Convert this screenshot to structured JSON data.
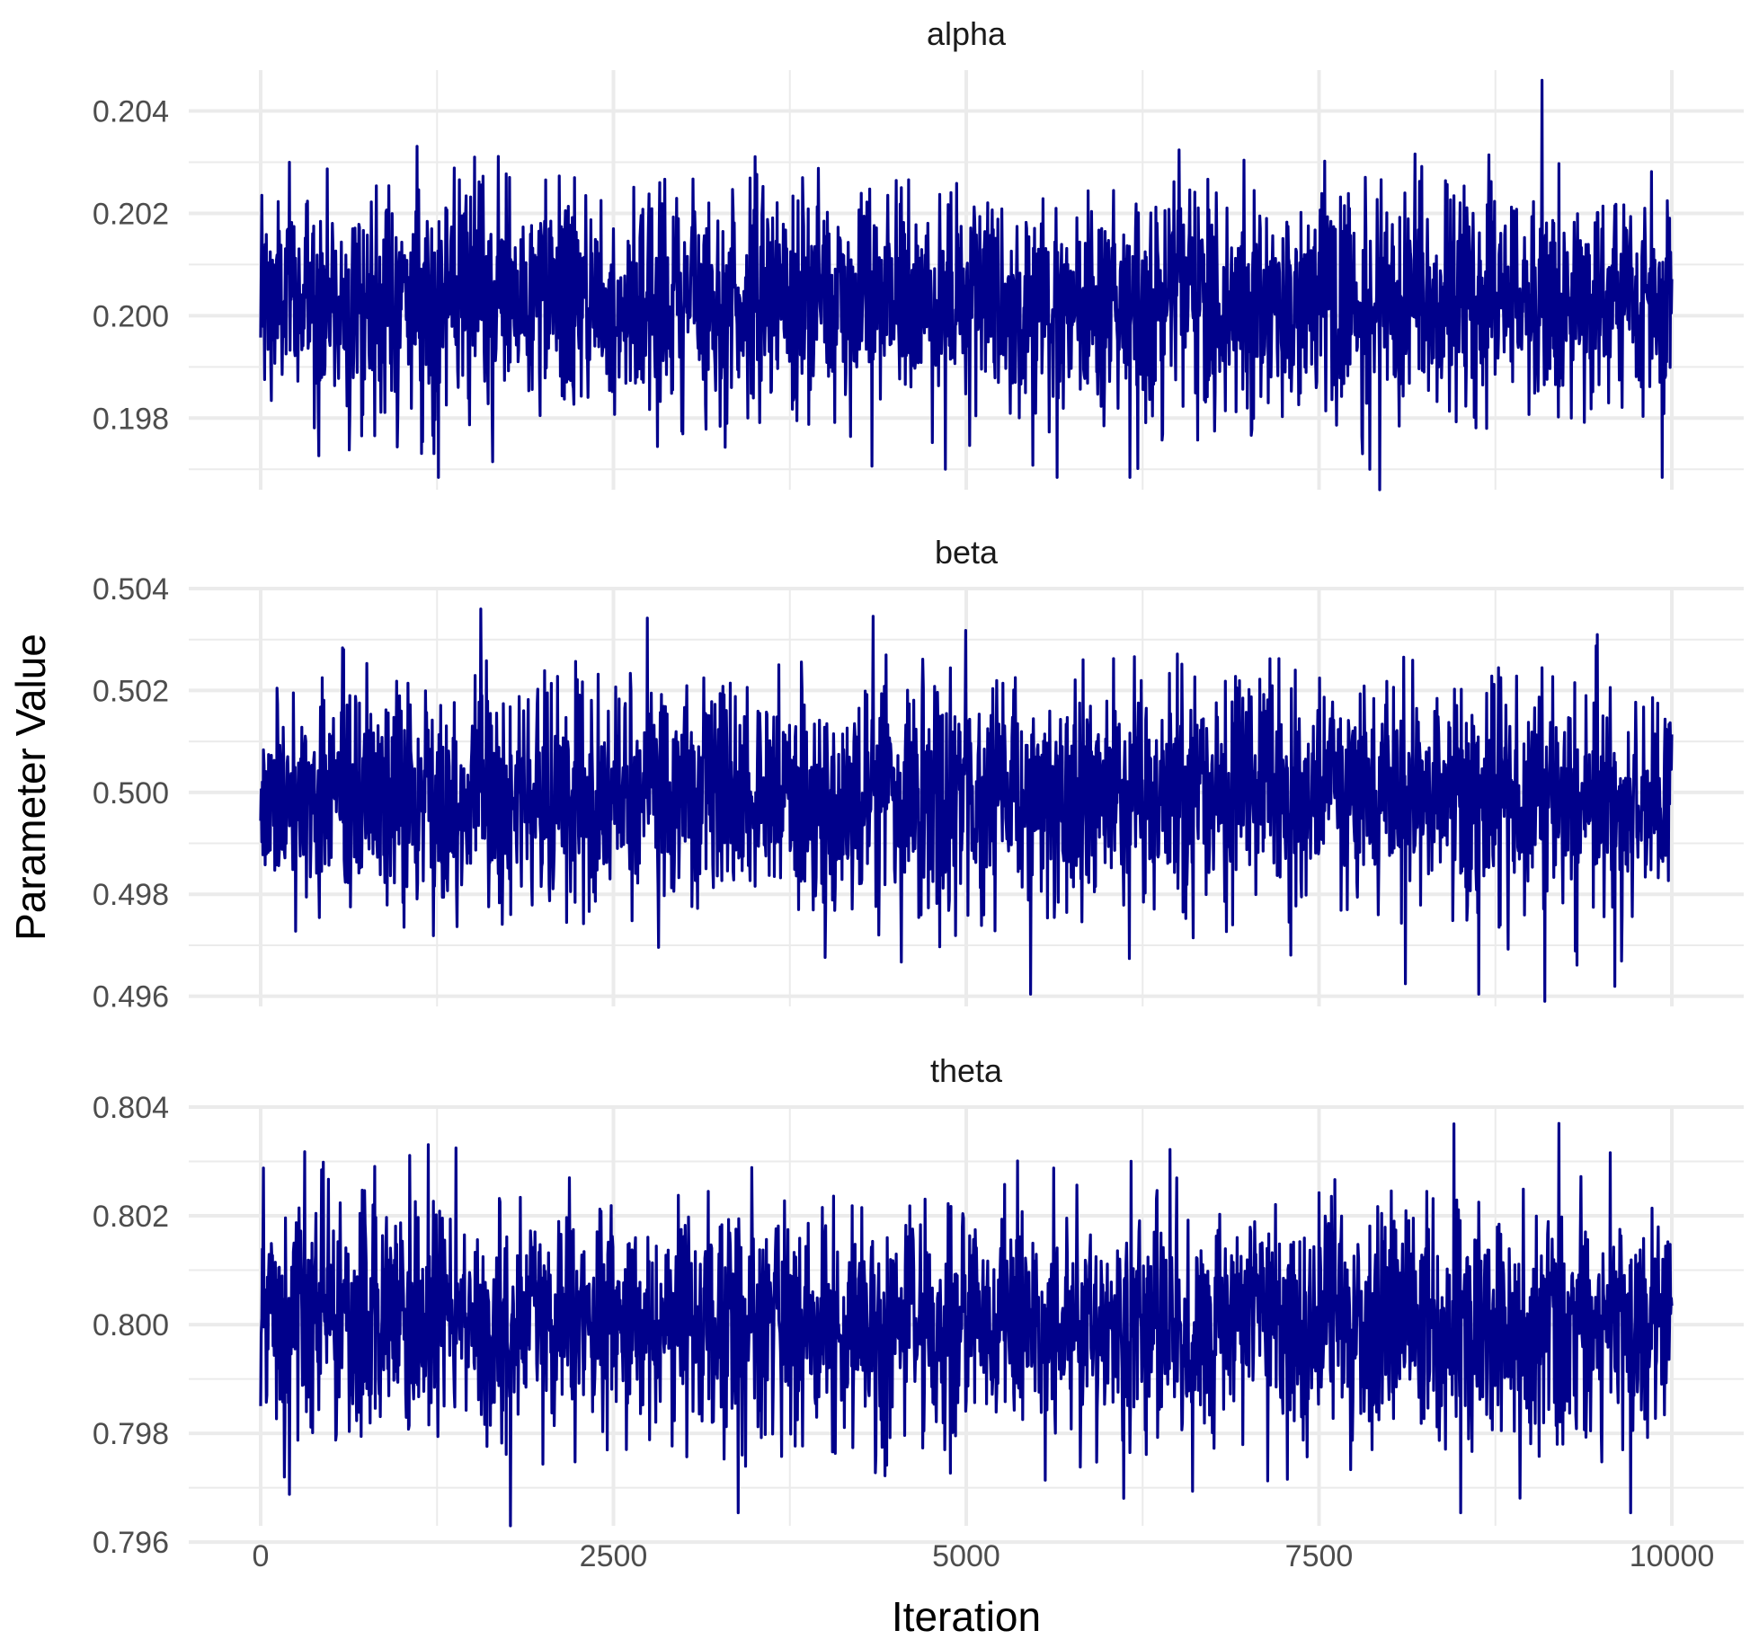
{
  "chart_data": {
    "type": "line",
    "layout": "faceted-vertical",
    "xlabel": "Iteration",
    "ylabel": "Parameter Value",
    "x_range": [
      0,
      10000
    ],
    "x_ticks": [
      0,
      2500,
      5000,
      7500,
      10000
    ],
    "x_tick_labels": [
      "0",
      "2500",
      "5000",
      "7500",
      "10000"
    ],
    "line_color": "#00008B",
    "grid": true,
    "legend": "none",
    "panels": [
      {
        "label": "alpha",
        "mean": 0.2003,
        "sd": 0.0011,
        "ylim": [
          0.1966,
          0.2048
        ],
        "y_ticks": [
          0.198,
          0.2,
          0.202,
          0.204
        ],
        "y_tick_labels": [
          "0.198",
          "0.200",
          "0.202",
          "0.204"
        ],
        "max": {
          "x": 9080,
          "y": 0.2046
        },
        "min": {
          "x": 7930,
          "y": 0.1966
        }
      },
      {
        "label": "beta",
        "mean": 0.4999,
        "sd": 0.0011,
        "ylim": [
          0.4958,
          0.504
        ],
        "y_ticks": [
          0.496,
          0.498,
          0.5,
          0.502,
          0.504
        ],
        "y_tick_labels": [
          "0.496",
          "0.498",
          "0.500",
          "0.502",
          "0.504"
        ],
        "max": {
          "x": 1560,
          "y": 0.5036
        },
        "min": {
          "x": 9100,
          "y": 0.4959
        }
      },
      {
        "label": "theta",
        "mean": 0.8,
        "sd": 0.0011,
        "ylim": [
          0.7963,
          0.804
        ],
        "y_ticks": [
          0.796,
          0.798,
          0.8,
          0.802,
          0.804
        ],
        "y_tick_labels": [
          "0.796",
          "0.798",
          "0.800",
          "0.802",
          "0.804"
        ],
        "max": {
          "x": 9200,
          "y": 0.8037
        },
        "min": {
          "x": 1770,
          "y": 0.7963
        }
      }
    ]
  }
}
